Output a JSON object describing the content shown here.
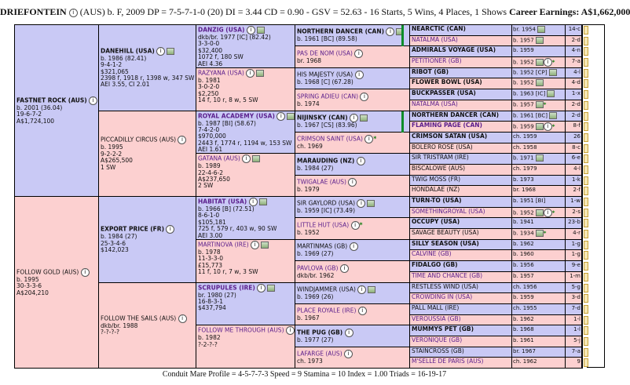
{
  "header": {
    "horse": "DRIEFONTEIN",
    "rest": "(AUS) b. F, 2009 DP = 7-5-7-1-0 (20) DI = 3.44   CD = 0.90 - GSV = 52.63 - 16 Starts, 5 Wins, 4 Places, 1 Shows",
    "earnings": "Career Earnings: A$1,662,000"
  },
  "gen1": [
    {
      "name": "FASTNET ROCK (AUS)",
      "lines": [
        "b. 2001 (36.04)",
        "19-6-7-2",
        "A$1,724,100"
      ]
    },
    {
      "name": "FOLLOW GOLD (AUS)",
      "lines": [
        "b. 1995",
        "30-3-3-6",
        "A$204,210"
      ]
    }
  ],
  "gen2": [
    {
      "name": "DANEHILL (USA)",
      "lines": [
        "b. 1986 (82.41)",
        "9-4-1-2",
        "$321,065",
        "2398 f, 1918 r, 1398 w, 347 SW",
        "AEI 3.55, CI 2.01"
      ]
    },
    {
      "name": "PICCADILLY CIRCUS (AUS)",
      "lines": [
        "b. 1995",
        "9-2-2-2",
        "A$265,500",
        "1 SW"
      ]
    },
    {
      "name": "EXPORT PRICE (FR)",
      "lines": [
        "b. 1984 (27)",
        "25-3-4-6",
        "$142,023"
      ]
    },
    {
      "name": "FOLLOW THE SAILS (AUS)",
      "lines": [
        "dkb/br. 1988",
        "?-?-?-?"
      ]
    }
  ],
  "gen3": [
    {
      "name": "DANZIG (USA)",
      "lines": [
        "dkb/br. 1977 [IC] (82.42)",
        "3-3-0-0",
        "$32,400",
        "1072 f, 180 SW",
        "AEI 4.36"
      ]
    },
    {
      "name": "RAZYANA (USA)",
      "lines": [
        "b. 1981",
        "3-0-2-0",
        "$2,250",
        "14 f, 10 r, 8 w, 5 SW"
      ]
    },
    {
      "name": "ROYAL ACADEMY (USA)",
      "lines": [
        "b. 1987 [BI] (58.67)",
        "7-4-2-0",
        "$970,000",
        "2443 f, 1774 r, 1194 w, 153 SW",
        "AEI 1.61"
      ]
    },
    {
      "name": "GATANA (AUS)",
      "lines": [
        "b. 1989",
        "22-4-6-2",
        "A$237,650",
        "2 SW"
      ]
    },
    {
      "name": "HABITAT (USA)",
      "lines": [
        "b. 1966 [B] (72.51)",
        "8-6-1-0",
        "$105,181",
        "725 f, 579 r, 403 w, 90 SW",
        "AEI 3.00"
      ]
    },
    {
      "name": "MARTINOVA (IRE)",
      "lines": [
        "b. 1978",
        "11-3-3-0",
        "£15,773",
        "11 f, 10 r, 7 w, 3 SW"
      ]
    },
    {
      "name": "SCRUPULES (IRE)",
      "lines": [
        "br. 1980 (27)",
        "16-8-3-1",
        "$437,794"
      ]
    },
    {
      "name": "FOLLOW ME THROUGH (AUS)",
      "lines": [
        "b. 1982",
        "?-2-?-?"
      ]
    }
  ],
  "gen4": [
    {
      "name": "NORTHERN DANCER (CAN)",
      "line": "b. 1961 [BC] (89.58)"
    },
    {
      "name": "PAS DE NOM (USA)",
      "line": "br. 1968"
    },
    {
      "name": "HIS MAJESTY (USA)",
      "line": "b. 1968 [C] (67.28)"
    },
    {
      "name": "SPRING ADIEU (CAN)",
      "line": "b. 1974"
    },
    {
      "name": "NIJINSKY (CAN)",
      "line": "b. 1967 [CS] (83.96)"
    },
    {
      "name": "CRIMSON SAINT (USA)",
      "line": "ch. 1969"
    },
    {
      "name": "MARAUDING (NZ)",
      "line": "b. 1984 (27)"
    },
    {
      "name": "TWIGALAE (AUS)",
      "line": "b. 1979"
    },
    {
      "name": "SIR GAYLORD (USA)",
      "line": "b. 1959 [IC] (73.49)"
    },
    {
      "name": "LITTLE HUT (USA)",
      "line": "b. 1952"
    },
    {
      "name": "MARTINMAS (GB)",
      "line": "b. 1969 (27)"
    },
    {
      "name": "PAVLOVA (GB)",
      "line": "dkb/br. 1962"
    },
    {
      "name": "WINDJAMMER (USA)",
      "line": "b. 1969 (26)"
    },
    {
      "name": "PLACE ROYALE (IRE)",
      "line": "b. 1967"
    },
    {
      "name": "THE PUG (GB)",
      "line": "b. 1977 (27)"
    },
    {
      "name": "LAFARGE (AUS)",
      "line": "ch. 1973"
    }
  ],
  "gen5": [
    {
      "name": "NEARCTIC (CAN)",
      "date": "br. 1954",
      "p": "14-c"
    },
    {
      "name": "NATALMA (USA)",
      "date": "b. 1957",
      "p": "2-d"
    },
    {
      "name": "ADMIRALS VOYAGE (USA)",
      "date": "b. 1959",
      "p": "4-n"
    },
    {
      "name": "PETITIONER (GB)",
      "date": "b. 1952",
      "p": "7-a"
    },
    {
      "name": "RIBOT (GB)",
      "date": "b. 1952 [CP]",
      "p": "4-l"
    },
    {
      "name": "FLOWER BOWL (USA)",
      "date": "b. 1952",
      "p": "4-d"
    },
    {
      "name": "BUCKPASSER (USA)",
      "date": "b. 1963 [IC]",
      "p": "1-x"
    },
    {
      "name": "NATALMA (USA)",
      "date": "b. 1957",
      "p": "2-d"
    },
    {
      "name": "NORTHERN DANCER (CAN)",
      "date": "b. 1961 [BC]",
      "p": "2-d"
    },
    {
      "name": "FLAMING PAGE (CAN)",
      "date": "b. 1959",
      "p": "8-f"
    },
    {
      "name": "CRIMSON SATAN (USA)",
      "date": "ch. 1959",
      "p": "26"
    },
    {
      "name": "BOLERO ROSE (USA)",
      "date": "ch. 1958",
      "p": "8-c"
    },
    {
      "name": "SIR TRISTRAM (IRE)",
      "date": "b. 1971",
      "p": "6-e"
    },
    {
      "name": "BISCALOWE (AUS)",
      "date": "ch. 1979",
      "p": "4-l"
    },
    {
      "name": "TWIG MOSS (FR)",
      "date": "b. 1973",
      "p": "1-k"
    },
    {
      "name": "HONDALAE (NZ)",
      "date": "br. 1968",
      "p": "2-f"
    },
    {
      "name": "TURN-TO (USA)",
      "date": "b. 1951 [BI]",
      "p": "1-w"
    },
    {
      "name": "SOMETHINGROYAL (USA)",
      "date": "b. 1952",
      "p": "2-s"
    },
    {
      "name": "OCCUPY (USA)",
      "date": "b. 1941",
      "p": "23-b"
    },
    {
      "name": "SAVAGE BEAUTY (USA)",
      "date": "b. 1934",
      "p": "4-r"
    },
    {
      "name": "SILLY SEASON (USA)",
      "date": "b. 1962",
      "p": "1-g"
    },
    {
      "name": "CALVINE (GB)",
      "date": "b. 1960",
      "p": "1-g"
    },
    {
      "name": "FIDALGO (GB)",
      "date": "b. 1956",
      "p": "9-e"
    },
    {
      "name": "TIME AND CHANCE (GB)",
      "date": "b. 1957",
      "p": "1-m"
    },
    {
      "name": "RESTLESS WIND (USA)",
      "date": "ch. 1956",
      "p": "5-g"
    },
    {
      "name": "CROWDING IN (USA)",
      "date": "b. 1959",
      "p": "3-d"
    },
    {
      "name": "PALL MALL (IRE)",
      "date": "ch. 1955",
      "p": "7-d"
    },
    {
      "name": "VEROUSSIA (GB)",
      "date": "b. 1962",
      "p": "1-l"
    },
    {
      "name": "MUMMYS PET (GB)",
      "date": "b. 1968",
      "p": "1-l"
    },
    {
      "name": "VERONIQUE (GB)",
      "date": "b. 1961",
      "p": "5-j"
    },
    {
      "name": "STAINCROSS (GB)",
      "date": "br. 1967",
      "p": "7-a"
    },
    {
      "name": "M'SELLE DE PARIS (AUS)",
      "date": "ch. 1962",
      "p": "9"
    }
  ],
  "footer": "Conduit Mare Profile = 4-5-7-7-3   Speed = 9   Stamina = 10   Index = 1.00   Triads = 16-19-17"
}
